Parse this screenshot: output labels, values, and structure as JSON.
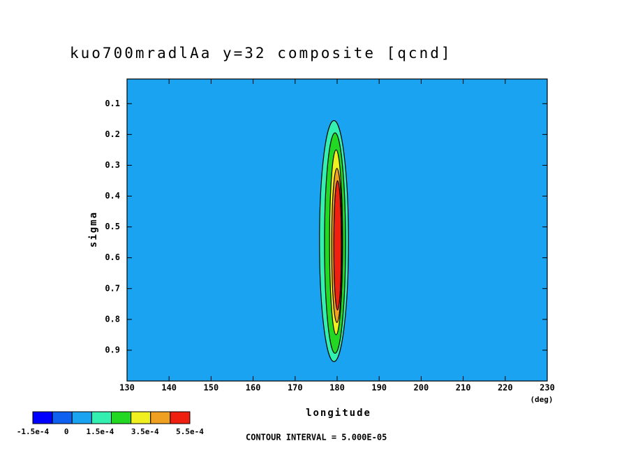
{
  "chart_data": {
    "type": "contour",
    "title": "kuo700mradlAa y=32 composite [qcnd]",
    "xlabel": "longitude",
    "xunit": "(deg)",
    "ylabel": "sigma",
    "xlim": [
      130,
      230
    ],
    "ylim": [
      0.02,
      1.0
    ],
    "xticks": [
      130,
      140,
      150,
      160,
      170,
      180,
      190,
      200,
      210,
      220,
      230
    ],
    "yticks": [
      0.1,
      0.2,
      0.3,
      0.4,
      0.5,
      0.6,
      0.7,
      0.8,
      0.9
    ],
    "yinverted": true,
    "background_color": "#1aa3f0",
    "regions": [
      {
        "level": 0.0001,
        "color": "#33f0b0",
        "lon": [
          175.8,
          182.7
        ],
        "sigma": [
          0.155,
          0.937
        ]
      },
      {
        "level": 0.0002,
        "color": "#22d822",
        "lon": [
          177.0,
          182.0
        ],
        "sigma": [
          0.195,
          0.91
        ]
      },
      {
        "level": 0.0003,
        "color": "#f0f020",
        "lon": [
          178.2,
          181.3
        ],
        "sigma": [
          0.25,
          0.85
        ]
      },
      {
        "level": 0.0004,
        "color": "#f0a020",
        "lon": [
          178.7,
          181.2
        ],
        "sigma": [
          0.31,
          0.81
        ]
      },
      {
        "level": 0.0005,
        "color": "#f02010",
        "lon": [
          179.2,
          181.0
        ],
        "sigma": [
          0.35,
          0.77
        ]
      }
    ],
    "colorbar": {
      "colors": [
        "#0000ff",
        "#1060f0",
        "#1aa3f0",
        "#33f0b0",
        "#22d822",
        "#f0f020",
        "#f0a020",
        "#f02010"
      ],
      "lim": [
        -0.00015,
        0.00055
      ],
      "ticks": [
        {
          "value": -0.00015,
          "label": "-1.5e-4"
        },
        0,
        {
          "value": 0.00015,
          "label": "1.5e-4"
        },
        {
          "value": 0.00035,
          "label": "3.5e-4"
        },
        {
          "value": 0.00055,
          "label": "5.5e-4"
        }
      ]
    },
    "note": "CONTOUR INTERVAL = 5.000E-05"
  }
}
